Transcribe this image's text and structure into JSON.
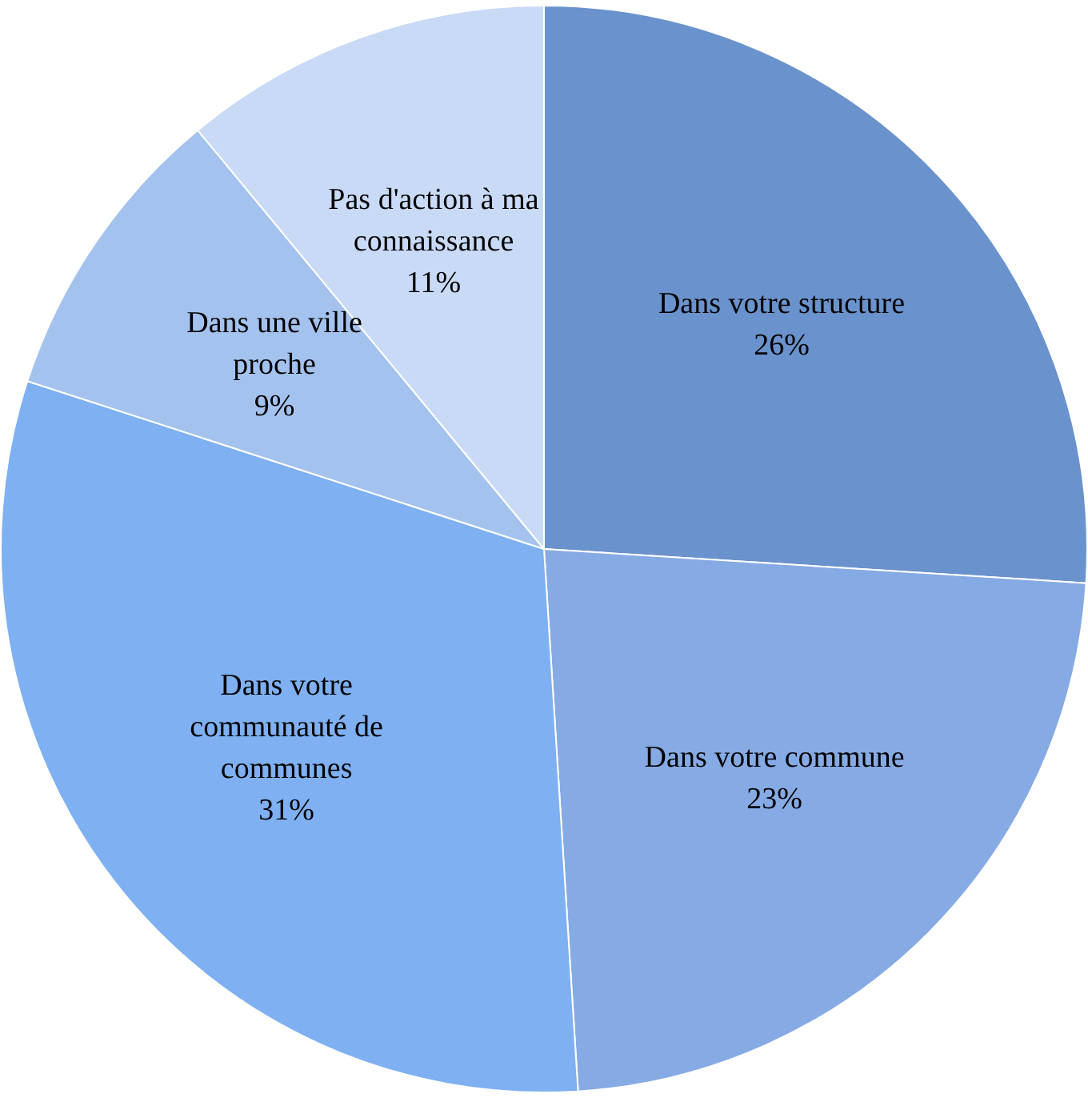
{
  "chart_data": {
    "type": "pie",
    "categories": [
      "Dans votre structure",
      "Dans votre commune",
      "Dans votre communauté de communes",
      "Dans une ville proche",
      "Pas d'action à ma connaissance"
    ],
    "values": [
      26,
      23,
      31,
      9,
      11
    ],
    "value_labels": [
      "26%",
      "23%",
      "31%",
      "9%",
      "11%"
    ],
    "colors": [
      "#6a92cc",
      "#86aae4",
      "#7eb0f2",
      "#a4c2ee",
      "#c8daf6"
    ],
    "legend": false
  }
}
